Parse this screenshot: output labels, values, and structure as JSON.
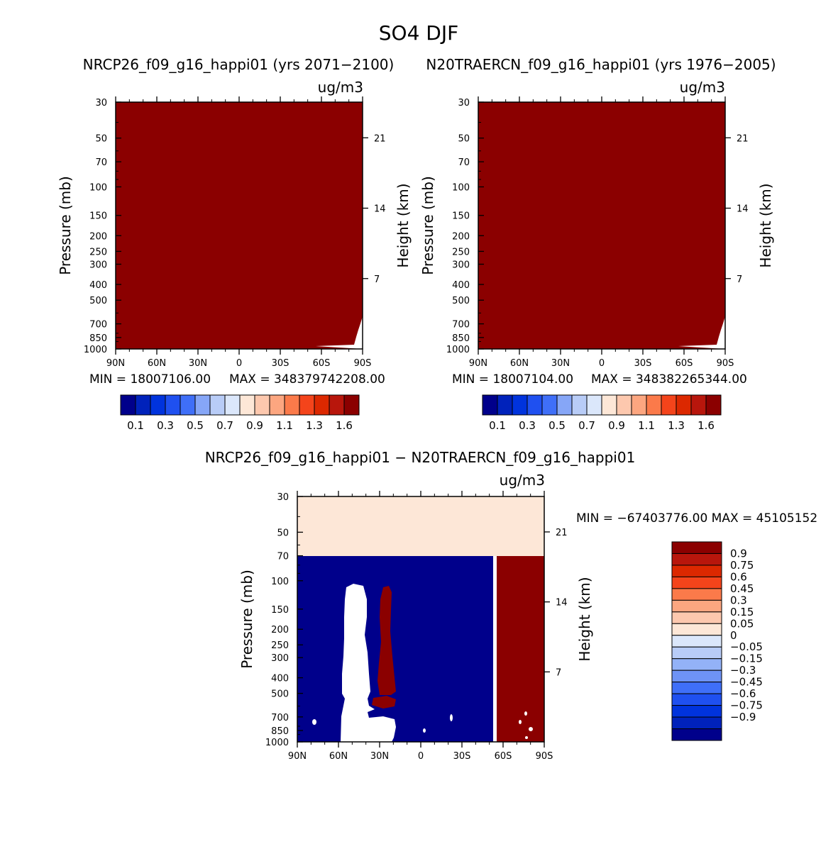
{
  "figure_title": "SO4 DJF",
  "x_ticks": [
    "90N",
    "60N",
    "30N",
    "0",
    "30S",
    "60S",
    "90S"
  ],
  "p_ticks": [
    30,
    50,
    70,
    100,
    150,
    200,
    250,
    300,
    400,
    500,
    700,
    850,
    1000
  ],
  "h_ticks": [
    21,
    14,
    7
  ],
  "p_axis_label": "Pressure (mb)",
  "h_axis_label": "Height (km)",
  "colors": {
    "darkred": "#8b0000",
    "navy": "#00008b",
    "peach": "#fde7d7",
    "white": "#ffffff"
  },
  "colorbar_top": {
    "colors": [
      "#00008b",
      "#0022bb",
      "#0033dd",
      "#1f50f0",
      "#3f6ff8",
      "#86a6f7",
      "#b8ccf7",
      "#dbe7fb",
      "#fde7d7",
      "#fdc8ae",
      "#fca680",
      "#fb7a4a",
      "#f4441b",
      "#dc2800",
      "#b8160c",
      "#8b0000"
    ],
    "labels": [
      "0.1",
      "0.3",
      "0.5",
      "0.7",
      "0.9",
      "1.1",
      "1.3",
      "1.6"
    ]
  },
  "colorbar_diff": {
    "colors": [
      "#00008b",
      "#0022bb",
      "#0033dd",
      "#1f50f0",
      "#3f6ff8",
      "#6e93f6",
      "#93b2f7",
      "#b8ccf7",
      "#dbe7fb",
      "#fde7d7",
      "#fdc8ae",
      "#fca680",
      "#fb7a4a",
      "#f4441b",
      "#dc2800",
      "#b8160c",
      "#8b0000"
    ],
    "labels": [
      "0.9",
      "0.75",
      "0.6",
      "0.45",
      "0.3",
      "0.15",
      "0.05",
      "0",
      "−0.05",
      "−0.15",
      "−0.3",
      "−0.45",
      "−0.6",
      "−0.75",
      "−0.9"
    ]
  },
  "chart_data": [
    {
      "type": "heatmap",
      "title": "NRCP26_f09_g16_happi01 (yrs 2071−2100)",
      "units": "ug/m3",
      "xlabel": "",
      "ylabel": "Pressure (mb)",
      "y2label": "Height (km)",
      "x_range": [
        "90N",
        "90S"
      ],
      "ylim": [
        1000,
        30
      ],
      "min_label": "MIN = 18007106.00",
      "max_label": "MAX = 348379742208.00"
    },
    {
      "type": "heatmap",
      "title": "N20TRAERCN_f09_g16_happi01 (yrs 1976−2005)",
      "units": "ug/m3",
      "xlabel": "",
      "ylabel": "Pressure (mb)",
      "y2label": "Height (km)",
      "x_range": [
        "90N",
        "90S"
      ],
      "ylim": [
        1000,
        30
      ],
      "min_label": "MIN = 18007104.00",
      "max_label": "MAX = 348382265344.00"
    },
    {
      "type": "heatmap",
      "title": "NRCP26_f09_g16_happi01 − N20TRAERCN_f09_g16_happi01",
      "units": "ug/m3",
      "xlabel": "",
      "ylabel": "Pressure (mb)",
      "y2label": "Height (km)",
      "x_range": [
        "90N",
        "90S"
      ],
      "ylim": [
        1000,
        30
      ],
      "minmax_label": "MIN = −67403776.00   MAX = 45105152"
    }
  ]
}
